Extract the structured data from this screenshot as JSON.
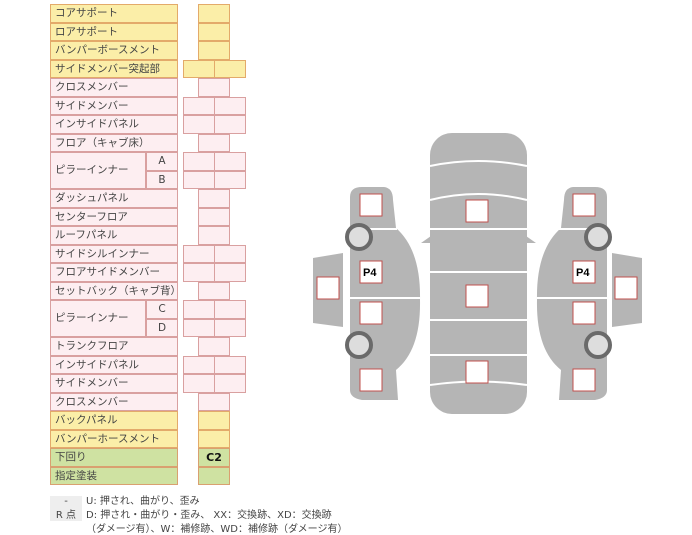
{
  "rows": [
    {
      "label": "コアサポート",
      "color": "y",
      "cells": 1
    },
    {
      "label": "ロアサポート",
      "color": "y",
      "cells": 1
    },
    {
      "label": "バンパーボースメント",
      "color": "y",
      "cells": 1
    },
    {
      "label": "サイドメンバー突起部",
      "color": "y",
      "cells": 2
    },
    {
      "label": "クロスメンバー",
      "color": "p",
      "cells": 1
    },
    {
      "label": "サイドメンバー",
      "color": "p",
      "cells": 2
    },
    {
      "label": "インサイドパネル",
      "color": "p",
      "cells": 2
    },
    {
      "label": "フロア（キャブ床）",
      "color": "p",
      "cells": 1
    },
    {
      "label": "ピラーインナー",
      "sub": "A",
      "color": "p",
      "cells": 2
    },
    {
      "label": "",
      "sub": "B",
      "color": "p",
      "cells": 2
    },
    {
      "label": "ダッシュパネル",
      "color": "p",
      "cells": 1
    },
    {
      "label": "センターフロア",
      "color": "p",
      "cells": 1
    },
    {
      "label": "ルーフパネル",
      "color": "p",
      "cells": 1
    },
    {
      "label": "サイドシルインナー",
      "color": "p",
      "cells": 2
    },
    {
      "label": "フロアサイドメンバー",
      "color": "p",
      "cells": 2
    },
    {
      "label": "セットバック（キャブ背）",
      "color": "p",
      "cells": 1
    },
    {
      "label": "ピラーインナー",
      "sub": "C",
      "color": "p",
      "cells": 2
    },
    {
      "label": "",
      "sub": "D",
      "color": "p",
      "cells": 2
    },
    {
      "label": "トランクフロア",
      "color": "p",
      "cells": 1
    },
    {
      "label": "インサイドパネル",
      "color": "p",
      "cells": 2
    },
    {
      "label": "サイドメンバー",
      "color": "p",
      "cells": 2
    },
    {
      "label": "クロスメンバー",
      "color": "p",
      "cells": 1
    },
    {
      "label": "バックパネル",
      "color": "y",
      "cells": 1
    },
    {
      "label": "バンパーホースメント",
      "color": "y",
      "cells": 1
    },
    {
      "label": "下回り",
      "color": "g",
      "cells": 1,
      "value": "C2"
    },
    {
      "label": "指定塗装",
      "color": "g",
      "cells": 1
    }
  ],
  "legend": [
    {
      "key": "-",
      "text": "U: 押され、曲がり、歪み"
    },
    {
      "key": "R 点",
      "text": "D: 押され・曲がり・歪み、 XX：交換跡、XD：交換跡"
    },
    {
      "key": "",
      "text": "（ダメージ有）、W：補修跡、WD：補修跡（ダメージ有）"
    }
  ],
  "diagram": {
    "left_p4": "P4",
    "right_p4": "P4"
  },
  "colors": {
    "yellow": "#fbeea8",
    "pink": "#fdeef1",
    "green": "#cfe2a2",
    "body": "#b5b5b5",
    "mark_border": "#c0504d"
  }
}
